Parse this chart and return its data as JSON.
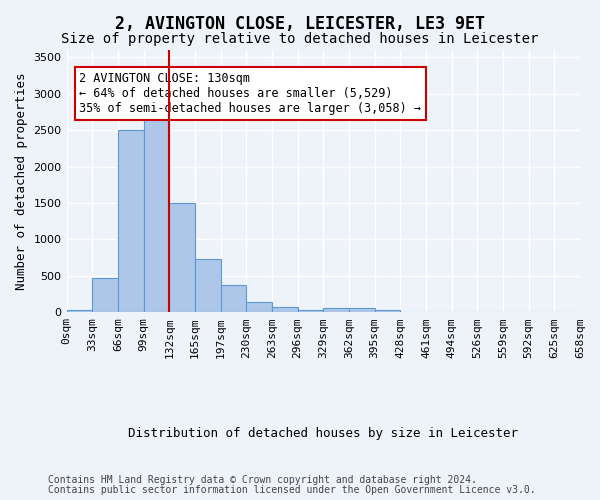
{
  "title_line1": "2, AVINGTON CLOSE, LEICESTER, LE3 9ET",
  "title_line2": "Size of property relative to detached houses in Leicester",
  "xlabel": "Distribution of detached houses by size in Leicester",
  "ylabel": "Number of detached properties",
  "bin_labels": [
    "0sqm",
    "33sqm",
    "66sqm",
    "99sqm",
    "132sqm",
    "165sqm",
    "197sqm",
    "230sqm",
    "263sqm",
    "296sqm",
    "329sqm",
    "362sqm",
    "395sqm",
    "428sqm",
    "461sqm",
    "494sqm",
    "526sqm",
    "559sqm",
    "592sqm",
    "625sqm",
    "658sqm"
  ],
  "bar_values": [
    25,
    475,
    2500,
    2830,
    1500,
    730,
    380,
    145,
    70,
    35,
    55,
    55,
    25,
    0,
    0,
    0,
    0,
    0,
    0,
    0
  ],
  "bar_color": "#aec6e8",
  "bar_edge_color": "#5b9bd5",
  "ylim": [
    0,
    3600
  ],
  "yticks": [
    0,
    500,
    1000,
    1500,
    2000,
    2500,
    3000,
    3500
  ],
  "property_line_x": 4,
  "annotation_text": "2 AVINGTON CLOSE: 130sqm\n← 64% of detached houses are smaller (5,529)\n35% of semi-detached houses are larger (3,058) →",
  "annotation_box_color": "#ffffff",
  "annotation_box_edge": "#cc0000",
  "vline_color": "#cc0000",
  "footer_line1": "Contains HM Land Registry data © Crown copyright and database right 2024.",
  "footer_line2": "Contains public sector information licensed under the Open Government Licence v3.0.",
  "background_color": "#eef3fa",
  "plot_bg_color": "#eef3fa",
  "grid_color": "#ffffff",
  "title_fontsize": 12,
  "subtitle_fontsize": 10,
  "axis_label_fontsize": 9,
  "tick_fontsize": 8,
  "annotation_fontsize": 8.5,
  "footer_fontsize": 7
}
